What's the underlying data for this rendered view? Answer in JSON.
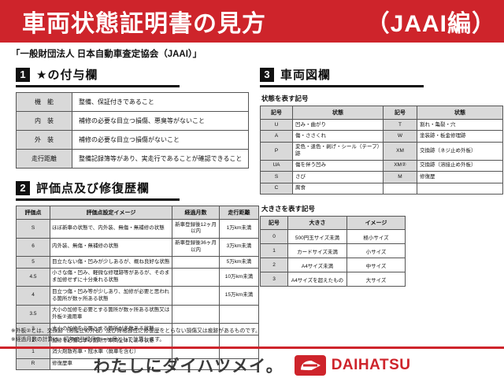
{
  "colors": {
    "banner_red": "#ce242b",
    "cell_gray": "#d9d9d9",
    "section_black": "#111111"
  },
  "banner": {
    "title": "車両状態証明書の見方",
    "edition": "（JAAI編）"
  },
  "subtitle": "「一般財団法人 日本自動車査定協会（JAAI）」",
  "section1": {
    "number": "1",
    "title": "★の付与欄",
    "table": {
      "headers": [],
      "rows": [
        [
          "機　能",
          "整備、保証付きであること"
        ],
        [
          "内　装",
          "補修の必要な目立つ損傷、悪臭等がないこと"
        ],
        [
          "外　装",
          "補修の必要な目立つ損傷がないこと"
        ],
        [
          "走行距離",
          "整備記録簿等があり、実走行であることが確認できること"
        ]
      ]
    }
  },
  "section2": {
    "number": "2",
    "title": "評価点及び修復歴欄",
    "table": {
      "headers": [
        "評価点",
        "評価点設定イメージ",
        "経過月数",
        "走行距離"
      ],
      "rows": [
        [
          "S",
          "ほぼ新車の状態で、内外装、無傷・無補修の状態",
          "新車登録後12ヶ月以内",
          "1万km未満"
        ],
        [
          "6",
          "内外装、無傷・無補修の状態",
          "新車登録後36ヶ月以内",
          "3万km未満"
        ],
        [
          "5",
          "目立たない傷・凹みが少しあるが、概ね良好な状態",
          "",
          "5万km未満"
        ],
        [
          "4.5",
          "小さな傷・凹み、軽微な修理跡等があるが、そのまま加修せずに十分乗れる状態",
          "",
          "10万km未満"
        ],
        [
          "4",
          "目立つ傷・凹み等が少しあり、加修が必要と思われる箇所が数ヶ所ある状態",
          "",
          "15万km未満"
        ],
        [
          "3.5",
          "大小の加修を必要とする箇所が数ヶ所ある状態又は外板②適用車",
          "",
          ""
        ],
        [
          "3",
          "大小の加修を必要とする箇所が多数ある状態",
          "",
          ""
        ],
        [
          "2",
          "加修を必要とする箇所が車両全体にある状態",
          "",
          ""
        ],
        [
          "1",
          "消火剤散布車・冠水車（廃車を含む）",
          "",
          ""
        ],
        [
          "R",
          "修復歴車",
          "",
          ""
        ]
      ]
    }
  },
  "section3": {
    "number": "3",
    "title": "車両図欄",
    "condition_label": "状態を表す記号",
    "condition_table": {
      "headers": [
        "記号",
        "状態",
        "記号",
        "状態"
      ],
      "rows": [
        [
          "U",
          "凹み・曲がり",
          "T",
          "割れ・亀裂・穴"
        ],
        [
          "A",
          "傷・ささくれ",
          "W",
          "塗装跡・板金修理跡"
        ],
        [
          "P",
          "変色・退色・剥げ・シール（テープ）跡",
          "XM",
          "交換跡（ネジ止め外板）"
        ],
        [
          "UA",
          "傷を伴う凹み",
          "XM②",
          "交換跡（溶接止め外板）"
        ],
        [
          "S",
          "さび",
          "M",
          "修復歴"
        ],
        [
          "C",
          "腐食",
          "",
          ""
        ]
      ]
    },
    "size_label": "大きさを表す記号",
    "size_table": {
      "headers": [
        "記号",
        "大きさ",
        "イメージ"
      ],
      "rows": [
        [
          "0",
          "500円玉サイズ未満",
          "極小サイズ"
        ],
        [
          "1",
          "カードサイズ未満",
          "小サイズ"
        ],
        [
          "2",
          "A4サイズ未満",
          "中サイズ"
        ],
        [
          "3",
          "A4サイズを超えたもの",
          "大サイズ"
        ]
      ]
    }
  },
  "footnotes": [
    "※外板②とは、交換跡（溶接止め外板）及び骨格部位に修復歴をとらない損傷又は痕跡があるものです。",
    "※経過月数の計算は、初年度登録月を一ヶ月として計算します。"
  ],
  "footer": {
    "slogan": "わたしにダイハツメイ。",
    "brand": "DAIHATSU",
    "logo_icon": "daihatsu-d-mark-icon"
  }
}
